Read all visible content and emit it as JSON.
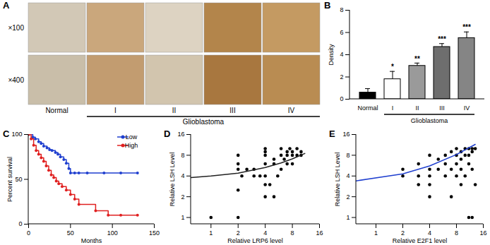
{
  "chart_data": [
    {
      "panel": "A",
      "type": "image_grid",
      "row_labels": [
        "×100",
        "×400"
      ],
      "columns": [
        "Normal",
        "I",
        "II",
        "III",
        "IV"
      ],
      "group_label": "Glioblastoma",
      "group_columns": [
        "I",
        "II",
        "III",
        "IV"
      ]
    },
    {
      "panel": "B",
      "type": "bar",
      "categories": [
        "Normal",
        "I",
        "II",
        "III",
        "IV"
      ],
      "values": [
        0.6,
        1.8,
        3.0,
        4.7,
        5.5
      ],
      "errors": [
        0.35,
        0.7,
        0.25,
        0.3,
        0.55
      ],
      "significance": [
        null,
        "*",
        "**",
        "***",
        "***"
      ],
      "colors": [
        "#000000",
        "#ffffff",
        "#9a9a9a",
        "#6e6e6e",
        "#858585"
      ],
      "ylabel": "Density",
      "ylim": [
        0,
        8
      ],
      "yticks": [
        0,
        2,
        4,
        6,
        8
      ],
      "group_label": "Glioblastoma",
      "group_categories": [
        "I",
        "II",
        "III",
        "IV"
      ]
    },
    {
      "panel": "C",
      "type": "line",
      "xlabel": "Months",
      "ylabel": "Percent survival",
      "xlim": [
        0,
        150
      ],
      "xticks": [
        0,
        50,
        100,
        150
      ],
      "ylim": [
        0,
        100
      ],
      "yticks": [
        0,
        50,
        100
      ],
      "legend": "top-right",
      "series": [
        {
          "name": "Low",
          "color": "#1f3fcf",
          "marker": "circle",
          "line_style": "step",
          "x": [
            0,
            5,
            8,
            12,
            15,
            18,
            22,
            25,
            28,
            32,
            35,
            38,
            42,
            45,
            48,
            50,
            55,
            60,
            70,
            90,
            110,
            130
          ],
          "values": [
            100,
            97,
            95,
            92,
            90,
            87,
            85,
            83,
            82,
            80,
            78,
            75,
            72,
            68,
            62,
            57,
            57,
            57,
            57,
            57,
            57,
            57
          ]
        },
        {
          "name": "High",
          "color": "#e02020",
          "marker": "circle",
          "line_style": "step",
          "x": [
            0,
            3,
            6,
            9,
            12,
            15,
            18,
            21,
            24,
            27,
            30,
            33,
            36,
            40,
            45,
            50,
            55,
            60,
            80,
            95,
            110,
            130
          ],
          "values": [
            100,
            95,
            88,
            82,
            78,
            74,
            70,
            65,
            60,
            55,
            52,
            48,
            45,
            42,
            38,
            33,
            28,
            22,
            15,
            10,
            10,
            10
          ]
        }
      ]
    },
    {
      "panel": "D",
      "type": "scatter",
      "xlabel": "Relative LRP6 level",
      "ylabel": "Relative LSH Level",
      "log": true,
      "xlim": [
        0.6,
        16
      ],
      "ylim": [
        0.8,
        16
      ],
      "xticks": [
        1,
        2,
        4,
        8,
        16
      ],
      "yticks": [
        1,
        2,
        4,
        8,
        16
      ],
      "series": [
        {
          "type": "scatter",
          "color": "#000000",
          "x": [
            1,
            2,
            2,
            2,
            2,
            2,
            2.2,
            2.5,
            3,
            3,
            3.5,
            4,
            4,
            4,
            4,
            4,
            4,
            4,
            4.5,
            5,
            5,
            5,
            5.5,
            6,
            6,
            6,
            6.5,
            7,
            7,
            7,
            7.5,
            8,
            8,
            8,
            9,
            9,
            10,
            10
          ],
          "values": [
            1,
            1,
            2.5,
            5,
            6,
            8,
            4,
            5,
            4,
            5,
            4,
            2,
            3,
            4,
            6,
            8,
            9,
            10,
            3,
            2,
            6,
            7,
            4,
            5,
            8,
            10,
            7,
            6,
            8,
            9,
            10,
            8,
            6,
            9,
            8,
            10,
            8,
            9
          ]
        },
        {
          "type": "line",
          "color": "#222222",
          "x": [
            0.6,
            1,
            2,
            4,
            6,
            8,
            11
          ],
          "values": [
            3.8,
            4.0,
            4.4,
            5.3,
            6.2,
            7.1,
            8.5
          ]
        }
      ]
    },
    {
      "panel": "E",
      "type": "scatter",
      "xlabel": "Relative E2F1 level",
      "ylabel": "Relative LSH Level",
      "log": true,
      "xlim": [
        0.6,
        16
      ],
      "ylim": [
        0.8,
        16
      ],
      "xticks": [
        1,
        2,
        4,
        8,
        16
      ],
      "yticks": [
        1,
        2,
        4,
        8,
        16
      ],
      "series": [
        {
          "type": "scatter",
          "color": "#000000",
          "x": [
            2,
            2,
            3,
            3,
            3,
            4,
            4,
            4,
            4,
            4,
            5,
            5,
            6,
            6,
            6,
            7,
            7,
            7,
            8,
            8,
            8,
            8,
            9,
            9,
            9,
            9,
            10,
            10,
            10,
            11,
            11,
            11,
            11,
            12,
            12,
            12,
            12,
            13,
            13
          ],
          "values": [
            4,
            5,
            3,
            4,
            6,
            2,
            3,
            4,
            5,
            8,
            5,
            7,
            4,
            6,
            8,
            2,
            5,
            9,
            4,
            6,
            8,
            10,
            3,
            5,
            7,
            9,
            4,
            8,
            10,
            1,
            6,
            8,
            10,
            1,
            5,
            9,
            10,
            3,
            10
          ]
        },
        {
          "type": "line",
          "color": "#1f3fcf",
          "x": [
            0.6,
            2,
            4,
            8,
            13
          ],
          "values": [
            3.4,
            4.3,
            5.6,
            8.2,
            11.5
          ]
        }
      ]
    }
  ]
}
